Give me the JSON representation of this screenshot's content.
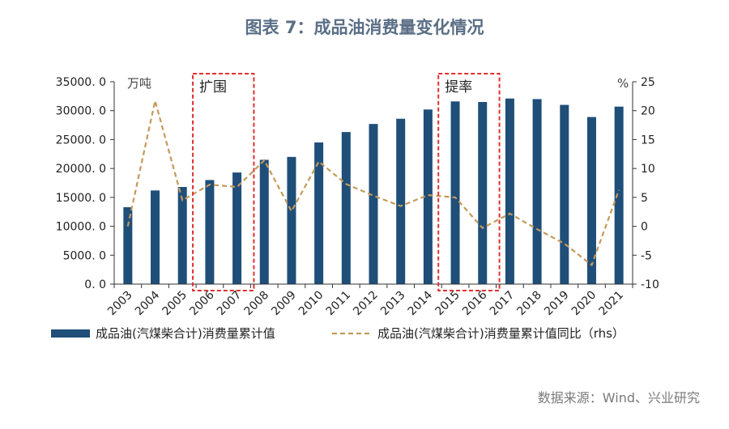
{
  "title": "图表 7：成品油消费量变化情况",
  "source": "数据来源：Wind、兴业研究",
  "chart_data": {
    "type": "bar+line",
    "categories": [
      "2003",
      "2004",
      "2005",
      "2006",
      "2007",
      "2008",
      "2009",
      "2010",
      "2011",
      "2012",
      "2013",
      "2014",
      "2015",
      "2016",
      "2017",
      "2018",
      "2019",
      "2020",
      "2021"
    ],
    "series": [
      {
        "name": "成品油(汽煤柴合计)消费量累计值",
        "type": "bar",
        "axis": "left",
        "color": "#1f4e79",
        "values": [
          13300,
          16200,
          16800,
          18000,
          19300,
          21500,
          22000,
          24500,
          26300,
          27700,
          28600,
          30200,
          31600,
          31500,
          32100,
          32000,
          31000,
          28900,
          30700
        ]
      },
      {
        "name": "成品油(汽煤柴合计)消费量累计值同比（rhs）",
        "type": "line",
        "axis": "right",
        "style": "dashed",
        "color": "#c49a5a",
        "values": [
          0.0,
          21.7,
          4.5,
          7.2,
          6.8,
          11.4,
          2.6,
          11.2,
          7.3,
          5.3,
          3.5,
          5.4,
          5.0,
          -0.3,
          2.2,
          -0.5,
          -3.0,
          -6.7,
          6.3
        ]
      }
    ],
    "y_left": {
      "unit": "万吨",
      "ylim": [
        0,
        35000
      ],
      "ticks": [
        "0. 0",
        "5000. 0",
        "10000. 0",
        "15000. 0",
        "20000. 0",
        "25000. 0",
        "30000. 0",
        "35000. 0"
      ]
    },
    "y_right": {
      "unit": "%",
      "ylim": [
        -10,
        25
      ],
      "ticks": [
        "-10",
        "-5",
        "0",
        "5",
        "10",
        "15",
        "20",
        "25"
      ]
    },
    "annotations": [
      {
        "label": "扩围",
        "from": "2006",
        "to": "2007",
        "color": "#e03030"
      },
      {
        "label": "提率",
        "from": "2015",
        "to": "2016",
        "color": "#e03030"
      }
    ],
    "grid": false,
    "legend_position": "bottom"
  }
}
